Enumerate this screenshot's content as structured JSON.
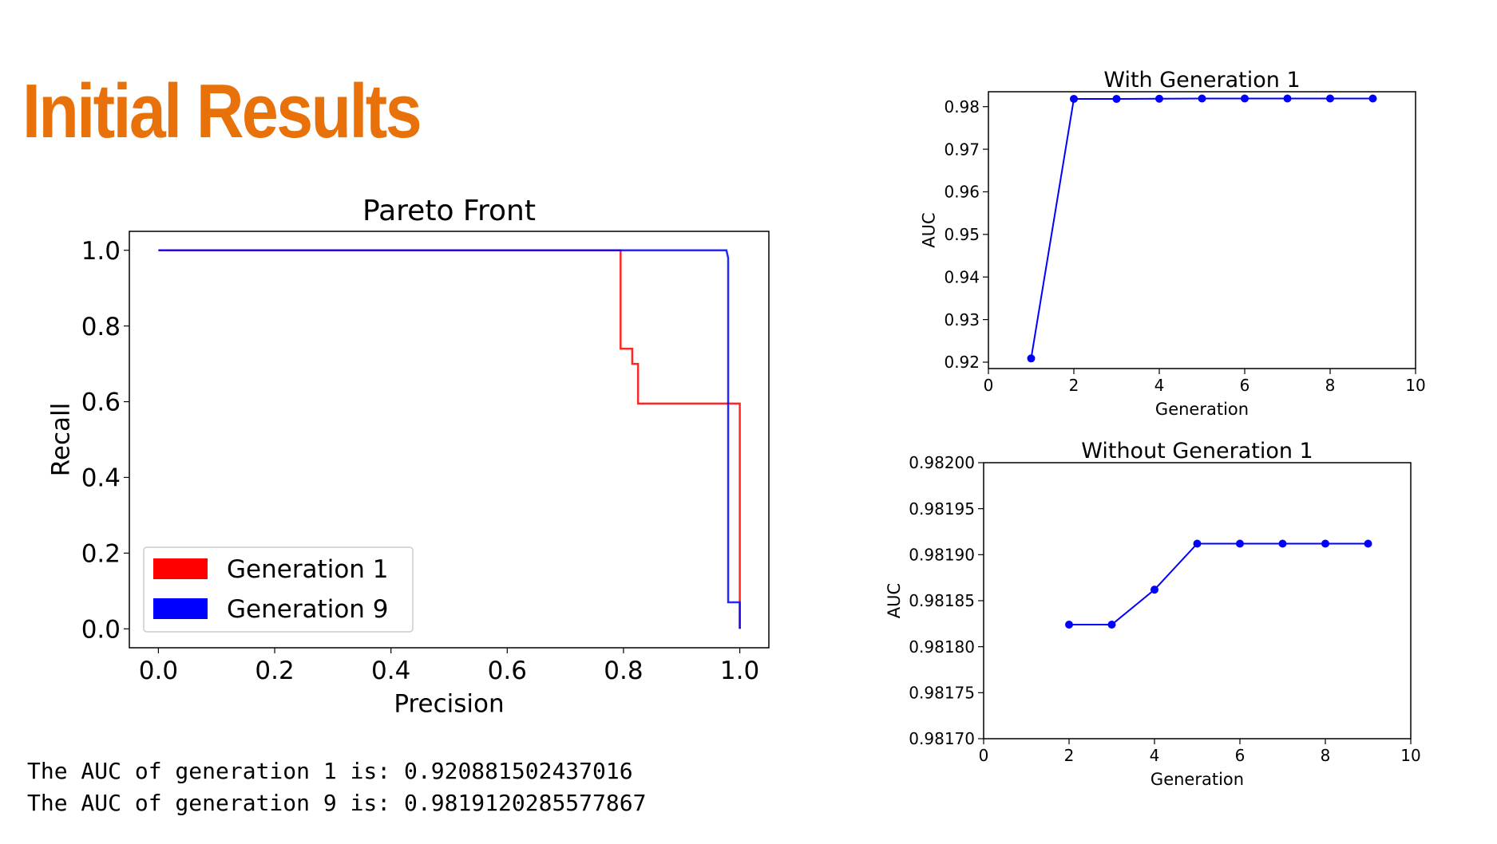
{
  "slide": {
    "title": "Initial Results",
    "auc_lines": [
      "The AUC of generation 1 is: 0.920881502437016",
      "The AUC of generation 9 is: 0.9819120285577867"
    ]
  },
  "chart_data": [
    {
      "id": "pareto",
      "type": "line",
      "title": "Pareto Front",
      "xlabel": "Precision",
      "ylabel": "Recall",
      "xlim": [
        -0.05,
        1.05
      ],
      "ylim": [
        -0.05,
        1.05
      ],
      "xticks": [
        "0.0",
        "0.2",
        "0.4",
        "0.6",
        "0.8",
        "1.0"
      ],
      "yticks": [
        "0.0",
        "0.2",
        "0.4",
        "0.6",
        "0.8",
        "1.0"
      ],
      "grid": false,
      "legend": "lower-left",
      "series": [
        {
          "name": "Generation 1",
          "color": "#ff0000",
          "points": [
            [
              0,
              1.0
            ],
            [
              0.795,
              1.0
            ],
            [
              0.795,
              0.74
            ],
            [
              0.815,
              0.74
            ],
            [
              0.815,
              0.7
            ],
            [
              0.825,
              0.7
            ],
            [
              0.825,
              0.595
            ],
            [
              1.0,
              0.595
            ],
            [
              1.0,
              0.0
            ]
          ]
        },
        {
          "name": "Generation 9",
          "color": "#0000ff",
          "points": [
            [
              0,
              1.0
            ],
            [
              0.977,
              1.0
            ],
            [
              0.98,
              0.98
            ],
            [
              0.98,
              0.07
            ],
            [
              1.0,
              0.07
            ],
            [
              1.0,
              0.0
            ]
          ]
        }
      ]
    },
    {
      "id": "with-gen1",
      "type": "line",
      "title": "With Generation 1",
      "xlabel": "Generation",
      "ylabel": "AUC",
      "xlim": [
        0,
        10
      ],
      "ylim": [
        0.9185,
        0.9835
      ],
      "xticks": [
        "0",
        "2",
        "4",
        "6",
        "8",
        "10"
      ],
      "yticks": [
        "0.92",
        "0.93",
        "0.94",
        "0.95",
        "0.96",
        "0.97",
        "0.98"
      ],
      "grid": false,
      "series": [
        {
          "color": "#0000ff",
          "x": [
            1,
            2,
            3,
            4,
            5,
            6,
            7,
            8,
            9
          ],
          "y": [
            0.920882,
            0.981824,
            0.981824,
            0.981862,
            0.981912,
            0.981912,
            0.981912,
            0.981912,
            0.981912
          ]
        }
      ]
    },
    {
      "id": "without-gen1",
      "type": "line",
      "title": "Without Generation 1",
      "xlabel": "Generation",
      "ylabel": "AUC",
      "xlim": [
        0,
        10
      ],
      "ylim": [
        0.9817,
        0.982
      ],
      "xticks": [
        "0",
        "2",
        "4",
        "6",
        "8",
        "10"
      ],
      "yticks": [
        "0.98170",
        "0.98175",
        "0.98180",
        "0.98185",
        "0.98190",
        "0.98195",
        "0.98200"
      ],
      "grid": false,
      "series": [
        {
          "color": "#0000ff",
          "x": [
            2,
            3,
            4,
            5,
            6,
            7,
            8,
            9
          ],
          "y": [
            0.981824,
            0.981824,
            0.981862,
            0.981912,
            0.981912,
            0.981912,
            0.981912,
            0.981912
          ]
        }
      ]
    }
  ]
}
